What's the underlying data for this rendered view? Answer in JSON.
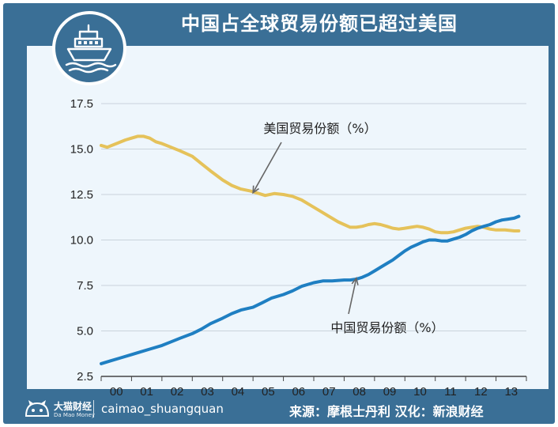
{
  "title": "中国占全球贸易份额已超过美国",
  "logo_icon": "ship-icon",
  "footer": {
    "brand_name": "大猫财经",
    "brand_sub": "Da Mao Money",
    "handle": "caimao_shuangquan",
    "source": "来源：摩根士丹利  汉化：新浪财经"
  },
  "colors": {
    "frame": "#3a6f96",
    "plot_background": "#eef6fc",
    "usa": "#e5c25a",
    "china": "#1f7fc2",
    "grid": "#c9d3db"
  },
  "chart_data": {
    "type": "line",
    "grid": true,
    "ylim": [
      2.5,
      17.5
    ],
    "yticks": [
      2.5,
      5.0,
      7.5,
      10.0,
      12.5,
      15.0,
      17.5
    ],
    "ytick_labels": [
      "2.5",
      "5.0",
      "7.5",
      "10.0",
      "12.5",
      "15.0",
      "17.5"
    ],
    "xlim": [
      2000,
      2014
    ],
    "xtick_labels": [
      "00",
      "01",
      "02",
      "03",
      "04",
      "05",
      "06",
      "07",
      "08",
      "09",
      "10",
      "11",
      "12",
      "13"
    ],
    "series": [
      {
        "name": "美国贸易份额（%）",
        "color": "#e5c25a",
        "x": [
          2000.0,
          2000.2,
          2000.5,
          2000.8,
          2001.0,
          2001.2,
          2001.4,
          2001.6,
          2001.8,
          2002.0,
          2002.3,
          2002.6,
          2003.0,
          2003.3,
          2003.6,
          2004.0,
          2004.3,
          2004.6,
          2004.9,
          2005.0,
          2005.2,
          2005.4,
          2005.7,
          2006.0,
          2006.3,
          2006.6,
          2006.9,
          2007.2,
          2007.5,
          2007.8,
          2008.0,
          2008.2,
          2008.4,
          2008.6,
          2008.8,
          2009.0,
          2009.2,
          2009.4,
          2009.6,
          2009.8,
          2010.0,
          2010.2,
          2010.4,
          2010.6,
          2010.8,
          2011.0,
          2011.2,
          2011.4,
          2011.6,
          2011.8,
          2012.0,
          2012.2,
          2012.4,
          2012.6,
          2012.8,
          2013.0,
          2013.3,
          2013.6,
          2013.75
        ],
        "y": [
          15.2,
          15.1,
          15.3,
          15.5,
          15.6,
          15.7,
          15.7,
          15.6,
          15.4,
          15.3,
          15.1,
          14.9,
          14.6,
          14.2,
          13.8,
          13.3,
          13.0,
          12.8,
          12.7,
          12.65,
          12.55,
          12.45,
          12.55,
          12.5,
          12.4,
          12.2,
          11.9,
          11.6,
          11.3,
          11.0,
          10.85,
          10.7,
          10.7,
          10.75,
          10.85,
          10.9,
          10.85,
          10.75,
          10.65,
          10.6,
          10.65,
          10.7,
          10.75,
          10.7,
          10.6,
          10.45,
          10.4,
          10.4,
          10.45,
          10.55,
          10.65,
          10.7,
          10.75,
          10.7,
          10.6,
          10.55,
          10.55,
          10.5,
          10.5
        ]
      },
      {
        "name": "中国贸易份额（%）",
        "color": "#1f7fc2",
        "x": [
          2000.0,
          2000.3,
          2000.6,
          2001.0,
          2001.3,
          2001.6,
          2002.0,
          2002.3,
          2002.6,
          2003.0,
          2003.3,
          2003.6,
          2004.0,
          2004.3,
          2004.6,
          2005.0,
          2005.3,
          2005.6,
          2006.0,
          2006.3,
          2006.6,
          2007.0,
          2007.3,
          2007.6,
          2008.0,
          2008.2,
          2008.4,
          2008.6,
          2008.8,
          2009.0,
          2009.2,
          2009.4,
          2009.6,
          2009.8,
          2010.0,
          2010.2,
          2010.4,
          2010.6,
          2010.8,
          2011.0,
          2011.2,
          2011.4,
          2011.6,
          2011.8,
          2012.0,
          2012.2,
          2012.4,
          2012.6,
          2012.8,
          2013.0,
          2013.2,
          2013.4,
          2013.6,
          2013.75
        ],
        "y": [
          3.2,
          3.35,
          3.5,
          3.7,
          3.85,
          4.0,
          4.2,
          4.4,
          4.6,
          4.85,
          5.1,
          5.4,
          5.7,
          5.95,
          6.15,
          6.3,
          6.55,
          6.8,
          7.0,
          7.2,
          7.45,
          7.65,
          7.75,
          7.75,
          7.8,
          7.8,
          7.85,
          7.95,
          8.1,
          8.3,
          8.5,
          8.7,
          8.9,
          9.15,
          9.4,
          9.6,
          9.75,
          9.9,
          10.0,
          10.0,
          9.95,
          9.95,
          10.05,
          10.15,
          10.3,
          10.5,
          10.65,
          10.75,
          10.85,
          11.0,
          11.1,
          11.15,
          11.2,
          11.3
        ]
      }
    ],
    "annotations": [
      {
        "text": "美国贸易份额（%）",
        "series": 0,
        "arrow_to": [
          2005.0,
          12.6
        ]
      },
      {
        "text": "中国贸易份额（%）",
        "series": 1,
        "arrow_to": [
          2008.4,
          7.9
        ]
      }
    ]
  }
}
